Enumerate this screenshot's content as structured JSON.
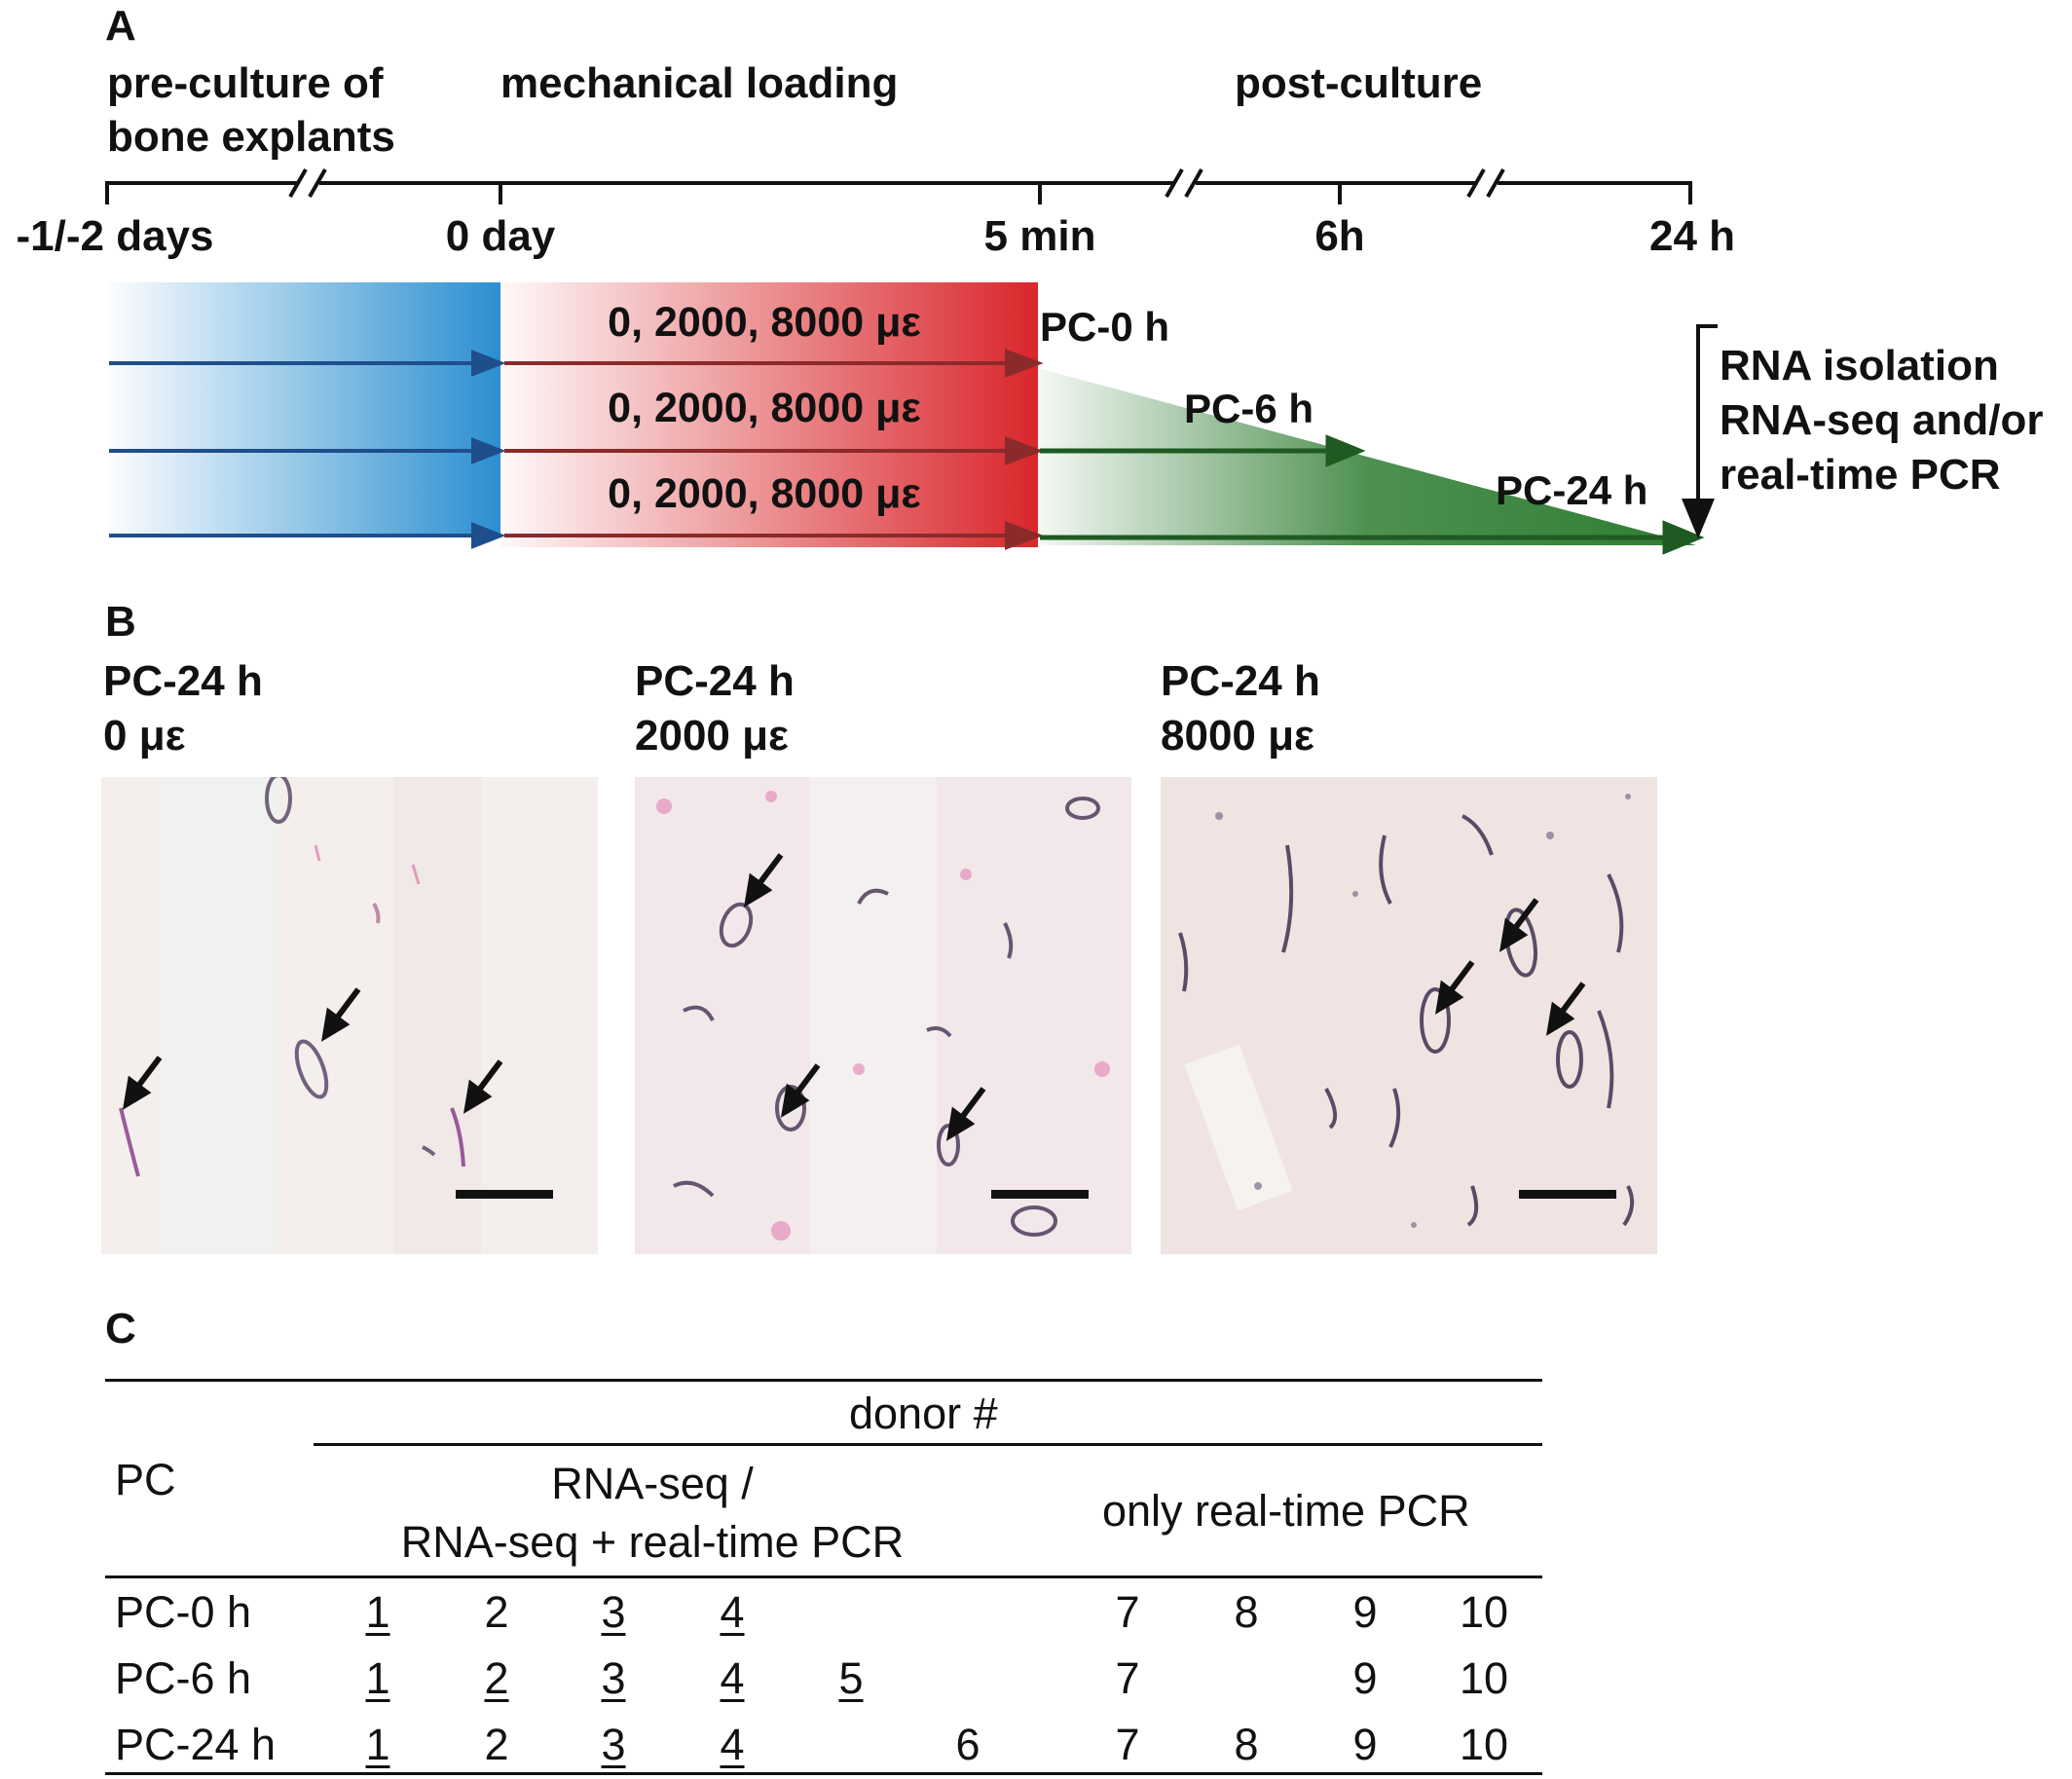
{
  "panel_a": {
    "letter": "A",
    "phases": {
      "preculture": [
        "pre-culture of",
        "bone explants"
      ],
      "loading": "mechanical loading",
      "postculture": "post-culture"
    },
    "ticks": [
      "-1/-2 days",
      "0 day",
      "5 min",
      "6h",
      "24 h"
    ],
    "strain_labels": [
      "0, 2000, 8000 με",
      "0, 2000, 8000 με",
      "0, 2000, 8000 με"
    ],
    "pc_labels": [
      "PC-0 h",
      "PC-6 h",
      "PC-24 h"
    ],
    "rna_labels": [
      "RNA isolation",
      "RNA-seq and/or",
      "real-time PCR"
    ],
    "colors": {
      "preculture": "#2b8fd0",
      "loading": "#d9262b",
      "postculture": "#2f7d32",
      "arrow_blue": "#1f4e8c",
      "arrow_red": "#8b2a2a",
      "arrow_green": "#1e5a22"
    }
  },
  "panel_b": {
    "letter": "B",
    "images": [
      {
        "line1": "PC-24 h",
        "line2": "0 με"
      },
      {
        "line1": "PC-24 h",
        "line2": "2000 με"
      },
      {
        "line1": "PC-24 h",
        "line2": "8000 με"
      }
    ]
  },
  "panel_c": {
    "letter": "C",
    "header_top": "donor #",
    "header_pc": "PC",
    "header_rnaseq": [
      "RNA-seq /",
      "RNA-seq + real-time PCR"
    ],
    "header_pcr_only": "only real-time PCR",
    "rows": [
      {
        "label": "PC-0 h",
        "cells": [
          {
            "v": "1",
            "u": true
          },
          {
            "v": "2",
            "u": false
          },
          {
            "v": "3",
            "u": true
          },
          {
            "v": "4",
            "u": true
          },
          {
            "v": "",
            "u": false
          },
          {
            "v": "",
            "u": false
          },
          {
            "v": "7",
            "u": false
          },
          {
            "v": "8",
            "u": false
          },
          {
            "v": "9",
            "u": false
          },
          {
            "v": "10",
            "u": false
          }
        ]
      },
      {
        "label": "PC-6 h",
        "cells": [
          {
            "v": "1",
            "u": true
          },
          {
            "v": "2",
            "u": true
          },
          {
            "v": "3",
            "u": true
          },
          {
            "v": "4",
            "u": true
          },
          {
            "v": "5",
            "u": true
          },
          {
            "v": "",
            "u": false
          },
          {
            "v": "7",
            "u": false
          },
          {
            "v": "",
            "u": false
          },
          {
            "v": "9",
            "u": false
          },
          {
            "v": "10",
            "u": false
          }
        ]
      },
      {
        "label": "PC-24 h",
        "cells": [
          {
            "v": "1",
            "u": true
          },
          {
            "v": "2",
            "u": false
          },
          {
            "v": "3",
            "u": true
          },
          {
            "v": "4",
            "u": true
          },
          {
            "v": "",
            "u": false
          },
          {
            "v": "6",
            "u": false
          },
          {
            "v": "7",
            "u": false
          },
          {
            "v": "8",
            "u": false
          },
          {
            "v": "9",
            "u": false
          },
          {
            "v": "10",
            "u": false
          }
        ]
      }
    ]
  }
}
